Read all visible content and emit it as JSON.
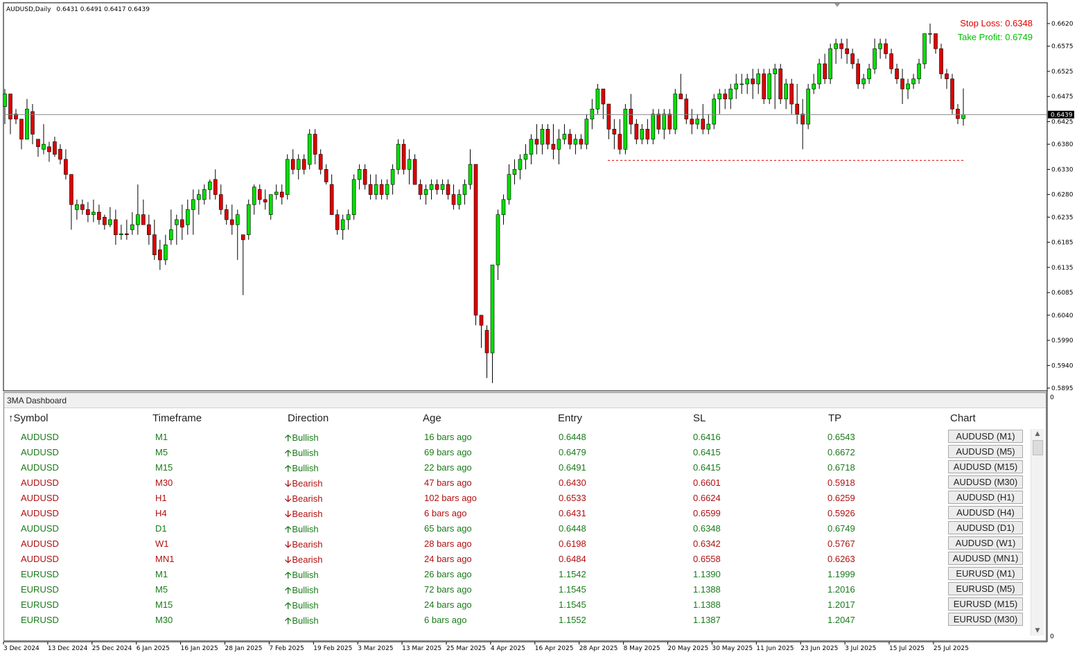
{
  "symbol_info": {
    "label": "AUDUSD,Daily",
    "ohlc": "0.6431 0.6491 0.6417 0.6439"
  },
  "stop_loss_label": "Stop Loss: 0.6348",
  "take_profit_label": "Take Profit: 0.6749",
  "colors": {
    "bull_candle": "#00e000",
    "bear_candle": "#e00000",
    "stop_loss": "#e00000",
    "take_profit": "#00d000",
    "bullish_text": "#1a7a1a",
    "bearish_text": "#b01010"
  },
  "chart_data": {
    "type": "candlestick",
    "title": "AUDUSD,Daily",
    "ylim": [
      0.5874,
      0.6651
    ],
    "y_ticks": [
      "0.6620",
      "0.6575",
      "0.6525",
      "0.6475",
      "0.6425",
      "0.6380",
      "0.6330",
      "0.6280",
      "0.6235",
      "0.6185",
      "0.6135",
      "0.6085",
      "0.6040",
      "0.5990",
      "0.5940",
      "0.5895"
    ],
    "x_ticks": [
      "3 Dec 2024",
      "13 Dec 2024",
      "25 Dec 2024",
      "6 Jan 2025",
      "16 Jan 2025",
      "28 Jan 2025",
      "7 Feb 2025",
      "19 Feb 2025",
      "3 Mar 2025",
      "13 Mar 2025",
      "25 Mar 2025",
      "4 Apr 2025",
      "16 Apr 2025",
      "28 Apr 2025",
      "8 May 2025",
      "20 May 2025",
      "30 May 2025",
      "11 Jun 2025",
      "23 Jun 2025",
      "3 Jul 2025",
      "15 Jul 2025",
      "25 Jul 2025"
    ],
    "current_price": 0.6439,
    "current_price_label": "0.6439",
    "stop_loss_level": 0.6348,
    "take_profit_level": 0.6749,
    "price_scale_zero_labels": [
      "0",
      "0"
    ],
    "candles_ohlc": [
      [
        0.6455,
        0.649,
        0.642,
        0.648
      ],
      [
        0.648,
        0.647,
        0.64,
        0.643
      ],
      [
        0.644,
        0.645,
        0.642,
        0.643
      ],
      [
        0.643,
        0.641,
        0.637,
        0.639
      ],
      [
        0.639,
        0.647,
        0.639,
        0.645
      ],
      [
        0.6445,
        0.646,
        0.638,
        0.64
      ],
      [
        0.639,
        0.639,
        0.6355,
        0.6375
      ],
      [
        0.637,
        0.642,
        0.636,
        0.638
      ],
      [
        0.6375,
        0.6385,
        0.6345,
        0.6365
      ],
      [
        0.6385,
        0.6395,
        0.6355,
        0.636
      ],
      [
        0.637,
        0.638,
        0.634,
        0.635
      ],
      [
        0.635,
        0.637,
        0.631,
        0.632
      ],
      [
        0.632,
        0.63,
        0.621,
        0.626
      ],
      [
        0.625,
        0.627,
        0.623,
        0.626
      ],
      [
        0.626,
        0.627,
        0.624,
        0.625
      ],
      [
        0.625,
        0.6265,
        0.6225,
        0.624
      ],
      [
        0.624,
        0.627,
        0.6225,
        0.6245
      ],
      [
        0.6245,
        0.626,
        0.622,
        0.623
      ],
      [
        0.6235,
        0.624,
        0.621,
        0.622
      ],
      [
        0.622,
        0.6255,
        0.6215,
        0.623
      ],
      [
        0.623,
        0.625,
        0.618,
        0.62
      ],
      [
        0.62,
        0.622,
        0.619,
        0.6202
      ],
      [
        0.6202,
        0.623,
        0.619,
        0.62
      ],
      [
        0.621,
        0.6245,
        0.62,
        0.622
      ],
      [
        0.622,
        0.63,
        0.62,
        0.624
      ],
      [
        0.624,
        0.627,
        0.622,
        0.622
      ],
      [
        0.622,
        0.624,
        0.618,
        0.62
      ],
      [
        0.62,
        0.623,
        0.615,
        0.616
      ],
      [
        0.617,
        0.619,
        0.613,
        0.615
      ],
      [
        0.615,
        0.62,
        0.614,
        0.618
      ],
      [
        0.619,
        0.625,
        0.618,
        0.621
      ],
      [
        0.622,
        0.624,
        0.618,
        0.623
      ],
      [
        0.623,
        0.626,
        0.619,
        0.6215
      ],
      [
        0.622,
        0.627,
        0.62,
        0.625
      ],
      [
        0.625,
        0.629,
        0.62,
        0.627
      ],
      [
        0.627,
        0.629,
        0.624,
        0.628
      ],
      [
        0.627,
        0.63,
        0.626,
        0.629
      ],
      [
        0.629,
        0.631,
        0.627,
        0.6305
      ],
      [
        0.631,
        0.633,
        0.627,
        0.628
      ],
      [
        0.628,
        0.63,
        0.624,
        0.625
      ],
      [
        0.625,
        0.626,
        0.622,
        0.623
      ],
      [
        0.623,
        0.626,
        0.62,
        0.622
      ],
      [
        0.622,
        0.625,
        0.615,
        0.624
      ],
      [
        0.62,
        0.618,
        0.608,
        0.619
      ],
      [
        0.62,
        0.627,
        0.619,
        0.626
      ],
      [
        0.626,
        0.63,
        0.624,
        0.6295
      ],
      [
        0.629,
        0.63,
        0.626,
        0.627
      ],
      [
        0.627,
        0.629,
        0.625,
        0.6265
      ],
      [
        0.624,
        0.627,
        0.623,
        0.628
      ],
      [
        0.628,
        0.63,
        0.627,
        0.6285
      ],
      [
        0.6285,
        0.63,
        0.626,
        0.6275
      ],
      [
        0.628,
        0.636,
        0.627,
        0.635
      ],
      [
        0.635,
        0.637,
        0.632,
        0.633
      ],
      [
        0.633,
        0.636,
        0.631,
        0.635
      ],
      [
        0.635,
        0.636,
        0.632,
        0.633
      ],
      [
        0.634,
        0.641,
        0.633,
        0.64
      ],
      [
        0.64,
        0.641,
        0.634,
        0.636
      ],
      [
        0.636,
        0.637,
        0.632,
        0.633
      ],
      [
        0.633,
        0.634,
        0.63,
        0.6305
      ],
      [
        0.63,
        0.632,
        0.626,
        0.624
      ],
      [
        0.624,
        0.625,
        0.62,
        0.621
      ],
      [
        0.621,
        0.624,
        0.619,
        0.623
      ],
      [
        0.623,
        0.625,
        0.621,
        0.624
      ],
      [
        0.624,
        0.632,
        0.623,
        0.631
      ],
      [
        0.631,
        0.634,
        0.629,
        0.633
      ],
      [
        0.633,
        0.634,
        0.629,
        0.63
      ],
      [
        0.63,
        0.632,
        0.627,
        0.628
      ],
      [
        0.628,
        0.632,
        0.627,
        0.63
      ],
      [
        0.63,
        0.631,
        0.627,
        0.628
      ],
      [
        0.628,
        0.631,
        0.627,
        0.63
      ],
      [
        0.63,
        0.634,
        0.628,
        0.633
      ],
      [
        0.633,
        0.639,
        0.632,
        0.638
      ],
      [
        0.638,
        0.639,
        0.632,
        0.633
      ],
      [
        0.633,
        0.637,
        0.63,
        0.635
      ],
      [
        0.635,
        0.636,
        0.63,
        0.63
      ],
      [
        0.63,
        0.631,
        0.627,
        0.628
      ],
      [
        0.628,
        0.63,
        0.626,
        0.629
      ],
      [
        0.629,
        0.631,
        0.627,
        0.63
      ],
      [
        0.63,
        0.631,
        0.628,
        0.629
      ],
      [
        0.629,
        0.631,
        0.628,
        0.63
      ],
      [
        0.63,
        0.631,
        0.627,
        0.628
      ],
      [
        0.628,
        0.63,
        0.625,
        0.626
      ],
      [
        0.626,
        0.629,
        0.625,
        0.628
      ],
      [
        0.628,
        0.631,
        0.626,
        0.63
      ],
      [
        0.63,
        0.637,
        0.629,
        0.634
      ],
      [
        0.634,
        0.634,
        0.602,
        0.604
      ],
      [
        0.604,
        0.603,
        0.5975,
        0.602
      ],
      [
        0.601,
        0.602,
        0.5915,
        0.5965
      ],
      [
        0.5965,
        0.614,
        0.5905,
        0.614
      ],
      [
        0.614,
        0.625,
        0.611,
        0.624
      ],
      [
        0.624,
        0.628,
        0.622,
        0.627
      ],
      [
        0.627,
        0.634,
        0.626,
        0.632
      ],
      [
        0.632,
        0.635,
        0.63,
        0.633
      ],
      [
        0.633,
        0.636,
        0.631,
        0.635
      ],
      [
        0.635,
        0.638,
        0.633,
        0.636
      ],
      [
        0.636,
        0.64,
        0.634,
        0.639
      ],
      [
        0.639,
        0.642,
        0.636,
        0.638
      ],
      [
        0.638,
        0.642,
        0.636,
        0.641
      ],
      [
        0.641,
        0.642,
        0.637,
        0.638
      ],
      [
        0.638,
        0.642,
        0.635,
        0.637
      ],
      [
        0.637,
        0.641,
        0.634,
        0.639
      ],
      [
        0.639,
        0.642,
        0.638,
        0.64
      ],
      [
        0.64,
        0.641,
        0.637,
        0.638
      ],
      [
        0.638,
        0.64,
        0.636,
        0.639
      ],
      [
        0.639,
        0.64,
        0.637,
        0.638
      ],
      [
        0.638,
        0.644,
        0.637,
        0.643
      ],
      [
        0.643,
        0.647,
        0.641,
        0.645
      ],
      [
        0.645,
        0.65,
        0.644,
        0.649
      ],
      [
        0.649,
        0.649,
        0.643,
        0.646
      ],
      [
        0.646,
        0.646,
        0.639,
        0.641
      ],
      [
        0.641,
        0.643,
        0.637,
        0.64
      ],
      [
        0.64,
        0.643,
        0.636,
        0.637
      ],
      [
        0.637,
        0.646,
        0.636,
        0.645
      ],
      [
        0.645,
        0.648,
        0.64,
        0.642
      ],
      [
        0.642,
        0.643,
        0.638,
        0.639
      ],
      [
        0.639,
        0.642,
        0.638,
        0.641
      ],
      [
        0.641,
        0.643,
        0.638,
        0.639
      ],
      [
        0.639,
        0.645,
        0.638,
        0.644
      ],
      [
        0.644,
        0.645,
        0.64,
        0.641
      ],
      [
        0.641,
        0.645,
        0.639,
        0.644
      ],
      [
        0.644,
        0.645,
        0.64,
        0.641
      ],
      [
        0.641,
        0.649,
        0.64,
        0.648
      ],
      [
        0.648,
        0.652,
        0.647,
        0.647
      ],
      [
        0.647,
        0.648,
        0.642,
        0.643
      ],
      [
        0.643,
        0.645,
        0.64,
        0.642
      ],
      [
        0.642,
        0.644,
        0.641,
        0.643
      ],
      [
        0.643,
        0.646,
        0.64,
        0.641
      ],
      [
        0.641,
        0.644,
        0.64,
        0.642
      ],
      [
        0.642,
        0.648,
        0.641,
        0.647
      ],
      [
        0.647,
        0.649,
        0.644,
        0.648
      ],
      [
        0.648,
        0.649,
        0.645,
        0.647
      ],
      [
        0.647,
        0.65,
        0.645,
        0.649
      ],
      [
        0.649,
        0.652,
        0.647,
        0.65
      ],
      [
        0.65,
        0.652,
        0.648,
        0.65
      ],
      [
        0.65,
        0.652,
        0.648,
        0.651
      ],
      [
        0.651,
        0.653,
        0.647,
        0.65
      ],
      [
        0.65,
        0.653,
        0.648,
        0.652
      ],
      [
        0.652,
        0.653,
        0.646,
        0.647
      ],
      [
        0.647,
        0.653,
        0.646,
        0.652
      ],
      [
        0.652,
        0.654,
        0.645,
        0.653
      ],
      [
        0.653,
        0.654,
        0.646,
        0.647
      ],
      [
        0.647,
        0.651,
        0.645,
        0.65
      ],
      [
        0.65,
        0.651,
        0.644,
        0.646
      ],
      [
        0.646,
        0.65,
        0.642,
        0.644
      ],
      [
        0.644,
        0.647,
        0.637,
        0.642
      ],
      [
        0.642,
        0.65,
        0.641,
        0.649
      ],
      [
        0.649,
        0.652,
        0.648,
        0.65
      ],
      [
        0.65,
        0.655,
        0.649,
        0.654
      ],
      [
        0.654,
        0.656,
        0.65,
        0.651
      ],
      [
        0.651,
        0.658,
        0.65,
        0.657
      ],
      [
        0.657,
        0.659,
        0.654,
        0.658
      ],
      [
        0.658,
        0.659,
        0.655,
        0.657
      ],
      [
        0.657,
        0.659,
        0.654,
        0.656
      ],
      [
        0.656,
        0.657,
        0.653,
        0.654
      ],
      [
        0.654,
        0.655,
        0.649,
        0.65
      ],
      [
        0.65,
        0.652,
        0.649,
        0.651
      ],
      [
        0.651,
        0.654,
        0.65,
        0.653
      ],
      [
        0.653,
        0.659,
        0.652,
        0.657
      ],
      [
        0.657,
        0.659,
        0.655,
        0.658
      ],
      [
        0.658,
        0.659,
        0.655,
        0.656
      ],
      [
        0.656,
        0.657,
        0.652,
        0.653
      ],
      [
        0.653,
        0.654,
        0.65,
        0.651
      ],
      [
        0.651,
        0.653,
        0.646,
        0.649
      ],
      [
        0.649,
        0.651,
        0.647,
        0.65
      ],
      [
        0.65,
        0.652,
        0.649,
        0.651
      ],
      [
        0.651,
        0.655,
        0.65,
        0.654
      ],
      [
        0.654,
        0.66,
        0.653,
        0.66
      ],
      [
        0.66,
        0.662,
        0.658,
        0.66
      ],
      [
        0.66,
        0.66,
        0.656,
        0.657
      ],
      [
        0.657,
        0.658,
        0.651,
        0.652
      ],
      [
        0.652,
        0.653,
        0.649,
        0.651
      ],
      [
        0.651,
        0.652,
        0.644,
        0.645
      ],
      [
        0.645,
        0.646,
        0.642,
        0.6431
      ],
      [
        0.6431,
        0.6491,
        0.6417,
        0.6439
      ]
    ],
    "grid": false
  },
  "dashboard": {
    "title": "3MA Dashboard",
    "headers": {
      "symbol": "Symbol",
      "sort_icon": "↑",
      "timeframe": "Timeframe",
      "direction": "Direction",
      "age": "Age",
      "entry": "Entry",
      "sl": "SL",
      "tp": "TP",
      "chart": "Chart"
    },
    "rows": [
      {
        "symbol": "AUDUSD",
        "timeframe": "M1",
        "arrow": "🡡",
        "direction": "Bullish",
        "age": "16 bars ago",
        "entry": "0.6448",
        "sl": "0.6416",
        "tp": "0.6543",
        "chart": "AUDUSD (M1)",
        "trend": "bull"
      },
      {
        "symbol": "AUDUSD",
        "timeframe": "M5",
        "arrow": "🡡",
        "direction": "Bullish",
        "age": "69 bars ago",
        "entry": "0.6479",
        "sl": "0.6415",
        "tp": "0.6672",
        "chart": "AUDUSD (M5)",
        "trend": "bull"
      },
      {
        "symbol": "AUDUSD",
        "timeframe": "M15",
        "arrow": "🡡",
        "direction": "Bullish",
        "age": "22 bars ago",
        "entry": "0.6491",
        "sl": "0.6415",
        "tp": "0.6718",
        "chart": "AUDUSD (M15)",
        "trend": "bull"
      },
      {
        "symbol": "AUDUSD",
        "timeframe": "M30",
        "arrow": "🡣",
        "direction": "Bearish",
        "age": "47 bars ago",
        "entry": "0.6430",
        "sl": "0.6601",
        "tp": "0.5918",
        "chart": "AUDUSD (M30)",
        "trend": "bear"
      },
      {
        "symbol": "AUDUSD",
        "timeframe": "H1",
        "arrow": "🡣",
        "direction": "Bearish",
        "age": "102 bars ago",
        "entry": "0.6533",
        "sl": "0.6624",
        "tp": "0.6259",
        "chart": "AUDUSD (H1)",
        "trend": "bear"
      },
      {
        "symbol": "AUDUSD",
        "timeframe": "H4",
        "arrow": "🡣",
        "direction": "Bearish",
        "age": "6 bars ago",
        "entry": "0.6431",
        "sl": "0.6599",
        "tp": "0.5926",
        "chart": "AUDUSD (H4)",
        "trend": "bear"
      },
      {
        "symbol": "AUDUSD",
        "timeframe": "D1",
        "arrow": "🡡",
        "direction": "Bullish",
        "age": "65 bars ago",
        "entry": "0.6448",
        "sl": "0.6348",
        "tp": "0.6749",
        "chart": "AUDUSD (D1)",
        "trend": "bull"
      },
      {
        "symbol": "AUDUSD",
        "timeframe": "W1",
        "arrow": "🡣",
        "direction": "Bearish",
        "age": "28 bars ago",
        "entry": "0.6198",
        "sl": "0.6342",
        "tp": "0.5767",
        "chart": "AUDUSD (W1)",
        "trend": "bear"
      },
      {
        "symbol": "AUDUSD",
        "timeframe": "MN1",
        "arrow": "🡣",
        "direction": "Bearish",
        "age": "24 bars ago",
        "entry": "0.6484",
        "sl": "0.6558",
        "tp": "0.6263",
        "chart": "AUDUSD (MN1)",
        "trend": "bear"
      },
      {
        "symbol": "EURUSD",
        "timeframe": "M1",
        "arrow": "🡡",
        "direction": "Bullish",
        "age": "26 bars ago",
        "entry": "1.1542",
        "sl": "1.1390",
        "tp": "1.1999",
        "chart": "EURUSD (M1)",
        "trend": "bull"
      },
      {
        "symbol": "EURUSD",
        "timeframe": "M5",
        "arrow": "🡡",
        "direction": "Bullish",
        "age": "72 bars ago",
        "entry": "1.1545",
        "sl": "1.1388",
        "tp": "1.2016",
        "chart": "EURUSD (M5)",
        "trend": "bull"
      },
      {
        "symbol": "EURUSD",
        "timeframe": "M15",
        "arrow": "🡡",
        "direction": "Bullish",
        "age": "24 bars ago",
        "entry": "1.1545",
        "sl": "1.1388",
        "tp": "1.2017",
        "chart": "EURUSD (M15)",
        "trend": "bull"
      },
      {
        "symbol": "EURUSD",
        "timeframe": "M30",
        "arrow": "🡡",
        "direction": "Bullish",
        "age": "6 bars ago",
        "entry": "1.1552",
        "sl": "1.1387",
        "tp": "1.2047",
        "chart": "EURUSD (M30)",
        "trend": "bull"
      }
    ]
  }
}
